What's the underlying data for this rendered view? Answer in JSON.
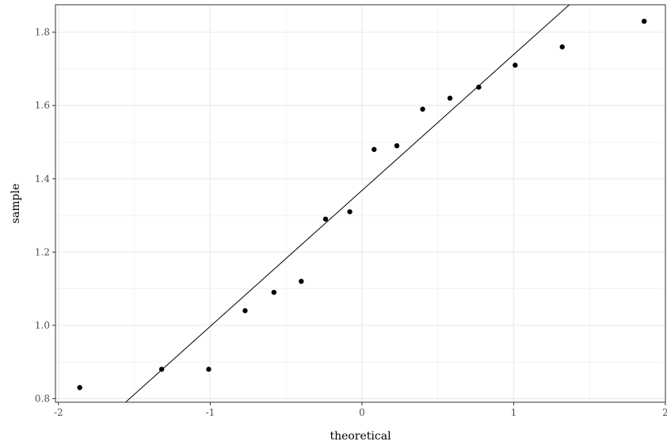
{
  "chart_data": {
    "type": "scatter",
    "title": "",
    "xlabel": "theoretical",
    "ylabel": "sample",
    "xlim": [
      -2.02,
      2.0
    ],
    "ylim": [
      0.79,
      1.875
    ],
    "x_ticks": [
      -2,
      -1,
      0,
      1,
      2
    ],
    "y_ticks": [
      0.8,
      1.0,
      1.2,
      1.4,
      1.6,
      1.8
    ],
    "x_tick_labels": [
      "-2",
      "-1",
      "0",
      "1",
      "2"
    ],
    "y_tick_labels": [
      "0.8",
      "1.0",
      "1.2",
      "1.4",
      "1.6",
      "1.8"
    ],
    "grid": true,
    "points": [
      {
        "x": -1.86,
        "y": 0.83
      },
      {
        "x": -1.32,
        "y": 0.88
      },
      {
        "x": -1.01,
        "y": 0.88
      },
      {
        "x": -0.77,
        "y": 1.04
      },
      {
        "x": -0.58,
        "y": 1.09
      },
      {
        "x": -0.4,
        "y": 1.12
      },
      {
        "x": -0.24,
        "y": 1.29
      },
      {
        "x": -0.08,
        "y": 1.31
      },
      {
        "x": 0.08,
        "y": 1.48
      },
      {
        "x": 0.23,
        "y": 1.49
      },
      {
        "x": 0.4,
        "y": 1.59
      },
      {
        "x": 0.58,
        "y": 1.62
      },
      {
        "x": 0.77,
        "y": 1.65
      },
      {
        "x": 1.01,
        "y": 1.71
      },
      {
        "x": 1.32,
        "y": 1.76
      },
      {
        "x": 1.86,
        "y": 1.83
      }
    ],
    "reference_line": {
      "slope": 0.371,
      "intercept": 1.368
    },
    "colors": {
      "point": "#000000",
      "line": "#000000",
      "grid": "#ebebeb",
      "panel_border": "#333333"
    }
  }
}
